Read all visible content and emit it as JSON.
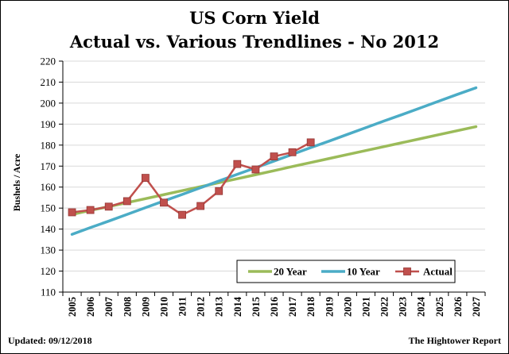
{
  "chart_data": {
    "type": "line",
    "title": "US Corn Yield",
    "subtitle": "Actual vs. Various Trendlines - No 2012",
    "xlabel": "",
    "ylabel": "Bushels / Acre",
    "ylim": [
      110,
      220
    ],
    "yticks": [
      110,
      120,
      130,
      140,
      150,
      160,
      170,
      180,
      190,
      200,
      210,
      220
    ],
    "x": [
      "2005",
      "2006",
      "2007",
      "2008",
      "2009",
      "2010",
      "2011",
      "2012",
      "2013",
      "2014",
      "2015",
      "2016",
      "2017",
      "2018",
      "2019",
      "2020",
      "2021",
      "2022",
      "2023",
      "2024",
      "2025",
      "2026",
      "2027"
    ],
    "grid": true,
    "legend_position": "bottom-right",
    "series": [
      {
        "name": "20 Year",
        "color": "#9bbb59",
        "values": [
          147.0,
          148.9,
          150.7,
          152.6,
          154.5,
          156.4,
          158.3,
          160.2,
          162.1,
          164.0,
          165.9,
          167.8,
          169.8,
          171.7,
          173.6,
          175.5,
          177.4,
          179.3,
          181.2,
          183.1,
          185.0,
          186.9,
          188.8
        ]
      },
      {
        "name": "10 Year",
        "color": "#4bacc6",
        "values": [
          137.5,
          140.7,
          143.8,
          147.0,
          150.2,
          153.4,
          156.5,
          159.7,
          162.9,
          166.1,
          169.2,
          172.4,
          175.6,
          178.8,
          181.9,
          185.1,
          188.3,
          191.5,
          194.6,
          197.8,
          201.0,
          204.2,
          207.3
        ]
      },
      {
        "name": "Actual",
        "color": "#c0504d",
        "marker": "square",
        "values": [
          148.0,
          149.1,
          150.7,
          153.3,
          164.4,
          152.6,
          146.8,
          151.0,
          158.1,
          171.0,
          168.4,
          174.6,
          176.6,
          181.3,
          null,
          null,
          null,
          null,
          null,
          null,
          null,
          null,
          null
        ]
      }
    ]
  },
  "footer": {
    "updated": "Updated:  09/12/2018",
    "source": "The Hightower Report"
  }
}
